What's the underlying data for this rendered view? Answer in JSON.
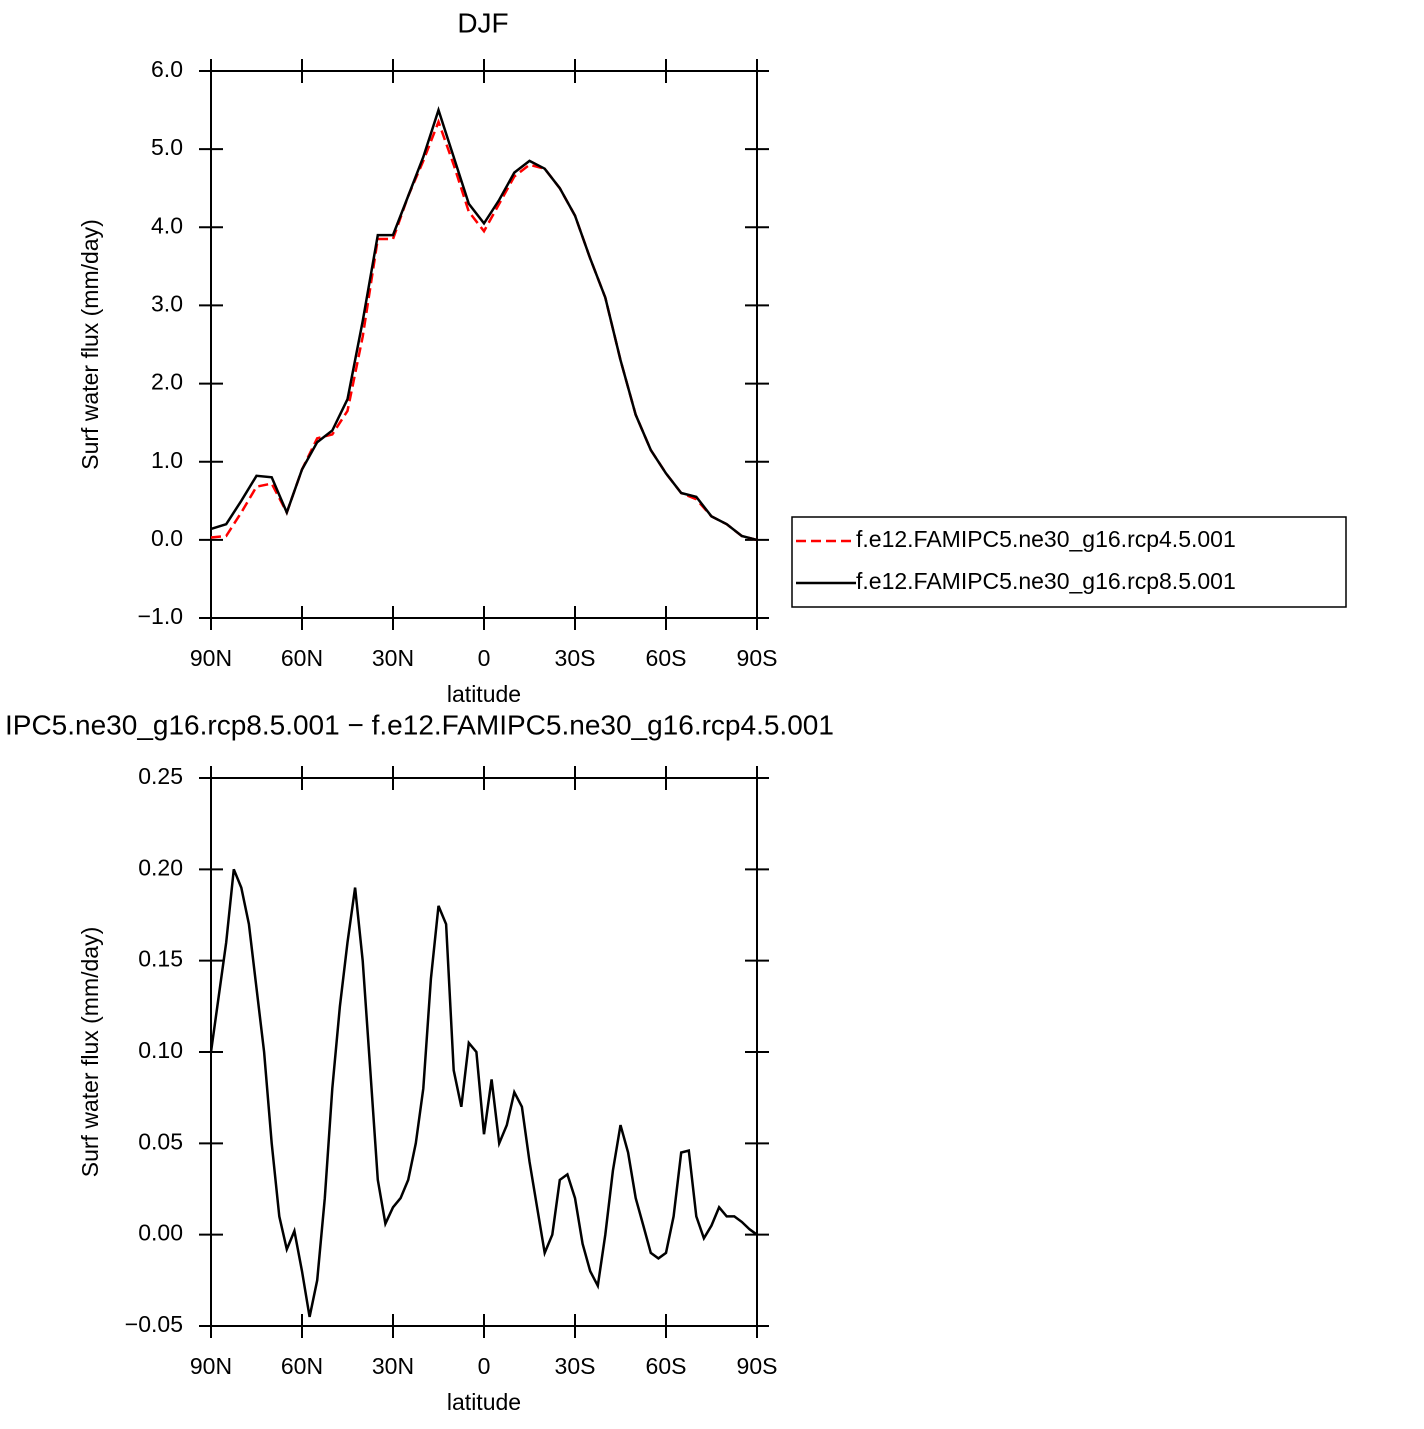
{
  "chart_data": [
    {
      "type": "line",
      "title": "DJF",
      "xlabel": "latitude",
      "ylabel": "Surf water flux (mm/day)",
      "x": [
        90,
        85,
        80,
        75,
        70,
        65,
        60,
        55,
        50,
        45,
        40,
        35,
        30,
        25,
        20,
        15,
        10,
        5,
        0,
        -5,
        -10,
        -15,
        -20,
        -25,
        -30,
        -35,
        -40,
        -45,
        -50,
        -55,
        -60,
        -65,
        -70,
        -75,
        -80,
        -85,
        -90
      ],
      "series": [
        {
          "name": "f.e12.FAMIPC5.ne30_g16.rcp4.5.001",
          "color": "#ff0000",
          "dash": "dashed",
          "values": [
            0.03,
            0.05,
            0.35,
            0.68,
            0.72,
            0.35,
            0.9,
            1.3,
            1.35,
            1.65,
            2.6,
            3.85,
            3.85,
            4.4,
            4.85,
            5.35,
            4.8,
            4.2,
            3.95,
            4.3,
            4.65,
            4.8,
            4.75,
            4.5,
            4.15,
            3.6,
            3.1,
            2.3,
            1.6,
            1.15,
            0.85,
            0.6,
            0.52,
            0.3,
            0.2,
            0.05,
            0.0
          ]
        },
        {
          "name": "f.e12.FAMIPC5.ne30_g16.rcp8.5.001",
          "color": "#000000",
          "dash": "solid",
          "values": [
            0.14,
            0.2,
            0.5,
            0.82,
            0.8,
            0.35,
            0.9,
            1.25,
            1.4,
            1.8,
            2.8,
            3.9,
            3.9,
            4.4,
            4.9,
            5.5,
            4.9,
            4.3,
            4.05,
            4.35,
            4.7,
            4.85,
            4.75,
            4.5,
            4.15,
            3.6,
            3.1,
            2.3,
            1.6,
            1.15,
            0.85,
            0.6,
            0.55,
            0.3,
            0.2,
            0.05,
            0.0
          ]
        }
      ],
      "xlim": [
        90,
        -90
      ],
      "xticks": [
        {
          "value": 90,
          "label": "90N"
        },
        {
          "value": 60,
          "label": "60N"
        },
        {
          "value": 30,
          "label": "30N"
        },
        0,
        {
          "value": -30,
          "label": "30S"
        },
        {
          "value": -60,
          "label": "60S"
        },
        {
          "value": -90,
          "label": "90S"
        }
      ],
      "ylim": [
        -1,
        6
      ],
      "yticks": [
        {
          "value": -1,
          "label": "−1.0"
        },
        {
          "value": 0,
          "label": "0.0"
        },
        {
          "value": 1,
          "label": "1.0"
        },
        {
          "value": 2,
          "label": "2.0"
        },
        {
          "value": 3,
          "label": "3.0"
        },
        {
          "value": 4,
          "label": "4.0"
        },
        {
          "value": 5,
          "label": "5.0"
        },
        {
          "value": 6,
          "label": "6.0"
        }
      ],
      "legend": "right"
    },
    {
      "type": "line",
      "title": "IPC5.ne30_g16.rcp8.5.001 − f.e12.FAMIPC5.ne30_g16.rcp4.5.001",
      "xlabel": "latitude",
      "ylabel": "Surf water flux (mm/day)",
      "x": [
        90,
        87.5,
        85,
        82.5,
        80,
        77.5,
        75,
        72.5,
        70,
        67.5,
        65,
        62.5,
        60,
        57.5,
        55,
        52.5,
        50,
        47.5,
        45,
        42.5,
        40,
        37.5,
        35,
        32.5,
        30,
        27.5,
        25,
        22.5,
        20,
        17.5,
        15,
        12.5,
        10,
        7.5,
        5,
        2.5,
        0,
        -2.5,
        -5,
        -7.5,
        -10,
        -12.5,
        -15,
        -17.5,
        -20,
        -22.5,
        -25,
        -27.5,
        -30,
        -32.5,
        -35,
        -37.5,
        -40,
        -42.5,
        -45,
        -47.5,
        -50,
        -52.5,
        -55,
        -57.5,
        -60,
        -62.5,
        -65,
        -67.5,
        -70,
        -72.5,
        -75,
        -77.5,
        -80,
        -82.5,
        -85,
        -87.5,
        -90
      ],
      "series": [
        {
          "color": "#000000",
          "dash": "solid",
          "values": [
            0.1,
            0.13,
            0.16,
            0.2,
            0.19,
            0.17,
            0.135,
            0.1,
            0.05,
            0.01,
            -0.008,
            0.002,
            -0.02,
            -0.045,
            -0.025,
            0.02,
            0.08,
            0.125,
            0.16,
            0.19,
            0.15,
            0.09,
            0.03,
            0.006,
            0.015,
            0.02,
            0.03,
            0.05,
            0.08,
            0.14,
            0.18,
            0.17,
            0.09,
            0.07,
            0.105,
            0.1,
            0.055,
            0.085,
            0.05,
            0.06,
            0.078,
            0.07,
            0.04,
            0.015,
            -0.01,
            0.0,
            0.03,
            0.033,
            0.02,
            -0.005,
            -0.02,
            -0.028,
            0.0,
            0.035,
            0.06,
            0.045,
            0.02,
            0.005,
            -0.01,
            -0.013,
            -0.01,
            0.01,
            0.045,
            0.046,
            0.01,
            -0.002,
            0.005,
            0.015,
            0.01,
            0.01,
            0.007,
            0.003,
            0.0
          ]
        }
      ],
      "xlim": [
        90,
        -90
      ],
      "xticks": [
        {
          "value": 90,
          "label": "90N"
        },
        {
          "value": 60,
          "label": "60N"
        },
        {
          "value": 30,
          "label": "30N"
        },
        0,
        {
          "value": -30,
          "label": "30S"
        },
        {
          "value": -60,
          "label": "60S"
        },
        {
          "value": -90,
          "label": "90S"
        }
      ],
      "ylim": [
        -0.05,
        0.25
      ],
      "yticks": [
        {
          "value": -0.05,
          "label": "−0.05"
        },
        {
          "value": 0,
          "label": "0.00"
        },
        0.05,
        {
          "value": 0.1,
          "label": "0.10"
        },
        0.15,
        {
          "value": 0.2,
          "label": "0.20"
        },
        0.25
      ]
    }
  ]
}
